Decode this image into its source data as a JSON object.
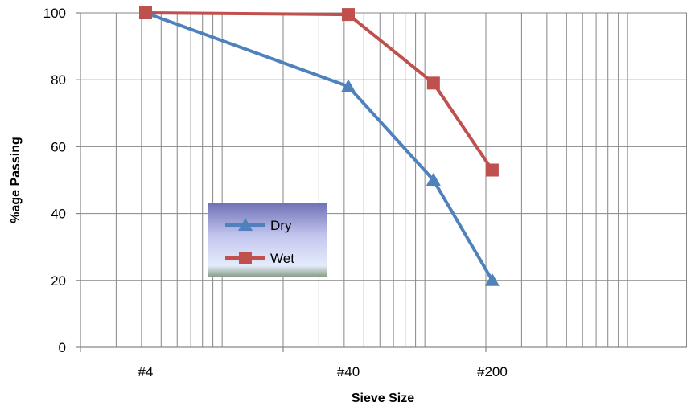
{
  "chart_data": {
    "type": "line",
    "xlabel": "Sieve Size",
    "ylabel": "%age Passing",
    "x_scale": "log",
    "ylim": [
      0,
      100
    ],
    "yticks": [
      0,
      20,
      40,
      60,
      80,
      100
    ],
    "xticks": [
      {
        "label": "#4"
      },
      {
        "label": "#40"
      },
      {
        "label": "#200"
      }
    ],
    "grid": true,
    "legend_position": "center-left",
    "series": [
      {
        "name": "Dry",
        "color": "#4F81BD",
        "marker": "triangle",
        "points": [
          {
            "x_rel": 0.0,
            "y": 100
          },
          {
            "x_rel": 1.0,
            "y": 78
          },
          {
            "x_rel": 1.42,
            "y": 50
          },
          {
            "x_rel": 1.71,
            "y": 20
          }
        ]
      },
      {
        "name": "Wet",
        "color": "#C0504D",
        "marker": "square",
        "points": [
          {
            "x_rel": 0.0,
            "y": 100
          },
          {
            "x_rel": 1.0,
            "y": 99.5
          },
          {
            "x_rel": 1.42,
            "y": 79
          },
          {
            "x_rel": 1.71,
            "y": 53
          }
        ]
      }
    ]
  }
}
